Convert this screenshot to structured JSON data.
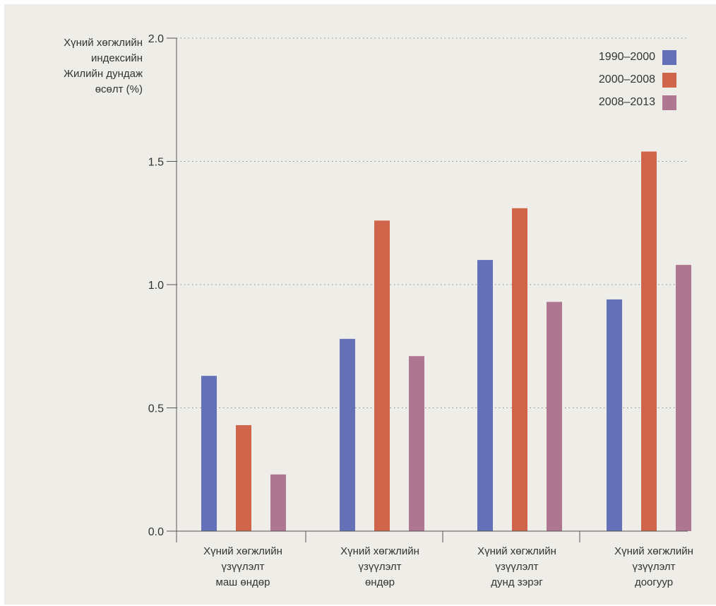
{
  "chart_data": {
    "type": "bar",
    "ylabel_lines": [
      "Хүний хөгжлийн",
      "индексийн",
      "Жилийн дундаж",
      "өсөлт (%)"
    ],
    "categories": [
      [
        "Хүний хөгжлийн",
        "үзүүлэлт",
        "маш өндөр"
      ],
      [
        "Хүний хөгжлийн",
        "үзүүлэлт",
        "өндөр"
      ],
      [
        "Хүний хөгжлийн",
        "үзүүлэлт",
        "дунд зэрэг"
      ],
      [
        "Хүний хөгжлийн",
        "үзүүлэлт",
        "доогуур"
      ]
    ],
    "series": [
      {
        "name": "1990–2000",
        "color": "#6470b8",
        "values": [
          0.63,
          0.78,
          1.1,
          0.94
        ]
      },
      {
        "name": "2000–2008",
        "color": "#d1654b",
        "values": [
          0.43,
          1.26,
          1.31,
          1.54
        ]
      },
      {
        "name": "2008–2013",
        "color": "#ae7690",
        "values": [
          0.23,
          0.71,
          0.93,
          1.08
        ]
      }
    ],
    "ylim": [
      0,
      2.0
    ],
    "yticks": [
      "0.0",
      "0.5",
      "1.0",
      "1.5",
      "2.0"
    ],
    "grid": true,
    "legend_position": "top-right"
  }
}
